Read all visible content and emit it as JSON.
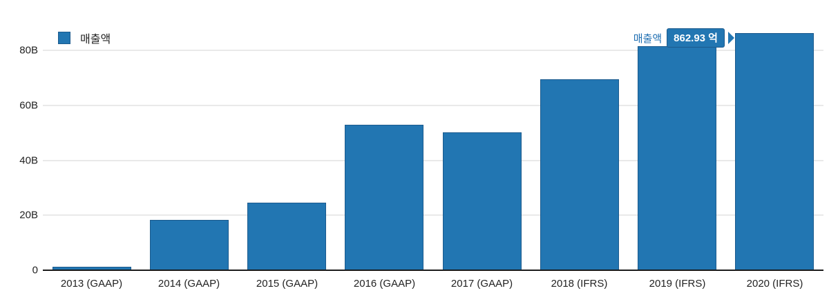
{
  "chart_data": {
    "type": "bar",
    "title": "",
    "xlabel": "",
    "ylabel": "",
    "legend_label": "매출액",
    "legend_position": "top-left",
    "grid": true,
    "categories": [
      "2013 (GAAP)",
      "2014 (GAAP)",
      "2015 (GAAP)",
      "2016 (GAAP)",
      "2017 (GAAP)",
      "2018 (IFRS)",
      "2019 (IFRS)",
      "2020 (IFRS)"
    ],
    "series": [
      {
        "name": "매출액",
        "values_billion": [
          1.2,
          18.4,
          24.7,
          52.9,
          50.1,
          69.5,
          81.4,
          86.29
        ]
      }
    ],
    "ylim": [
      0,
      88
    ],
    "ytick_interval_billion": 20,
    "yticks": [
      {
        "label": "0",
        "value": 0
      },
      {
        "label": "20B",
        "value": 20
      },
      {
        "label": "40B",
        "value": 40
      },
      {
        "label": "60B",
        "value": 60
      },
      {
        "label": "80B",
        "value": 80
      }
    ]
  },
  "tooltip": {
    "series_label": "매출액",
    "value_text": "862.93 억",
    "attached_category": "2020 (IFRS)"
  },
  "colors": {
    "bar_fill": "#2276b2",
    "bar_border": "#1b5a8d",
    "gridline": "#e9e9e9",
    "axis_line": "#1a1a1a",
    "text": "#222222",
    "tooltip_label_text": "#1f6fb2",
    "tooltip_box_fill": "#2276b2",
    "tooltip_box_border": "#1b5a8d",
    "tooltip_value_text": "#ffffff",
    "background": "#ffffff"
  }
}
